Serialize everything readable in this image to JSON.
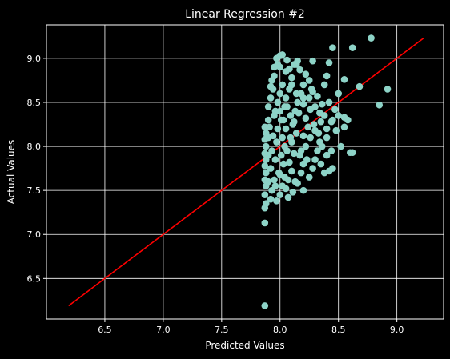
{
  "chart_data": {
    "type": "scatter",
    "title": "Linear Regression #2",
    "xlabel": "Predicted Values",
    "ylabel": "Actual Values",
    "xlim": [
      6.0,
      9.4
    ],
    "ylim": [
      6.04,
      9.38
    ],
    "xticks": [
      "6.5",
      "7.0",
      "7.5",
      "8.0",
      "8.5",
      "9.0"
    ],
    "yticks": [
      "6.5",
      "7.0",
      "7.5",
      "8.0",
      "8.5",
      "9.0"
    ],
    "grid": true,
    "colors": {
      "background": "#000000",
      "points": "#8dd3c7",
      "fit_line": "#ff0000",
      "grid": "#ffffff",
      "text": "#ffffff"
    },
    "fit_line": {
      "x": [
        6.19,
        9.23
      ],
      "y": [
        6.19,
        9.23
      ]
    },
    "points": [
      [
        7.87,
        6.19
      ],
      [
        7.87,
        7.13
      ],
      [
        7.87,
        7.3
      ],
      [
        7.88,
        7.35
      ],
      [
        7.87,
        7.45
      ],
      [
        7.88,
        7.55
      ],
      [
        7.87,
        7.62
      ],
      [
        7.88,
        7.7
      ],
      [
        7.87,
        7.78
      ],
      [
        7.88,
        7.85
      ],
      [
        7.87,
        7.92
      ],
      [
        7.88,
        8.0
      ],
      [
        7.87,
        8.08
      ],
      [
        7.88,
        8.15
      ],
      [
        7.87,
        8.22
      ],
      [
        7.9,
        8.3
      ],
      [
        7.9,
        8.45
      ],
      [
        7.92,
        8.55
      ],
      [
        7.92,
        8.68
      ],
      [
        7.93,
        8.75
      ],
      [
        7.95,
        8.8
      ],
      [
        7.98,
        8.93
      ],
      [
        7.97,
        9.0
      ],
      [
        8.02,
        9.04
      ],
      [
        7.92,
        7.4
      ],
      [
        7.93,
        7.5
      ],
      [
        7.95,
        7.62
      ],
      [
        7.92,
        7.75
      ],
      [
        7.96,
        7.85
      ],
      [
        7.93,
        7.95
      ],
      [
        7.97,
        8.05
      ],
      [
        7.94,
        8.12
      ],
      [
        7.98,
        8.2
      ],
      [
        7.95,
        8.35
      ],
      [
        8.0,
        8.4
      ],
      [
        7.98,
        8.5
      ],
      [
        8.0,
        8.6
      ],
      [
        8.02,
        8.7
      ],
      [
        8.0,
        7.45
      ],
      [
        8.02,
        7.55
      ],
      [
        8.0,
        7.68
      ],
      [
        8.03,
        7.8
      ],
      [
        8.01,
        7.9
      ],
      [
        8.04,
        8.0
      ],
      [
        8.02,
        8.1
      ],
      [
        8.05,
        8.2
      ],
      [
        8.03,
        8.3
      ],
      [
        8.06,
        8.45
      ],
      [
        8.05,
        8.55
      ],
      [
        8.08,
        8.65
      ],
      [
        8.1,
        8.78
      ],
      [
        8.08,
        8.88
      ],
      [
        8.12,
        8.93
      ],
      [
        8.15,
        8.97
      ],
      [
        8.05,
        7.52
      ],
      [
        8.07,
        7.62
      ],
      [
        8.1,
        7.72
      ],
      [
        8.08,
        7.82
      ],
      [
        8.12,
        7.92
      ],
      [
        8.1,
        8.05
      ],
      [
        8.14,
        8.15
      ],
      [
        8.12,
        8.28
      ],
      [
        8.16,
        8.38
      ],
      [
        8.15,
        8.5
      ],
      [
        8.18,
        8.6
      ],
      [
        8.2,
        8.48
      ],
      [
        8.15,
        7.58
      ],
      [
        8.18,
        7.7
      ],
      [
        8.2,
        7.8
      ],
      [
        8.17,
        7.9
      ],
      [
        8.22,
        8.0
      ],
      [
        8.2,
        8.12
      ],
      [
        8.24,
        8.22
      ],
      [
        8.22,
        8.32
      ],
      [
        8.26,
        8.42
      ],
      [
        8.25,
        8.55
      ],
      [
        8.28,
        8.62
      ],
      [
        8.3,
        8.45
      ],
      [
        8.2,
        7.5
      ],
      [
        8.25,
        7.65
      ],
      [
        8.28,
        7.75
      ],
      [
        8.3,
        7.85
      ],
      [
        8.32,
        7.95
      ],
      [
        8.34,
        8.05
      ],
      [
        8.3,
        8.18
      ],
      [
        8.35,
        8.28
      ],
      [
        8.38,
        8.35
      ],
      [
        8.4,
        8.2
      ],
      [
        8.36,
        8.0
      ],
      [
        8.4,
        7.9
      ],
      [
        8.38,
        7.7
      ],
      [
        8.42,
        7.72
      ],
      [
        8.45,
        7.75
      ],
      [
        8.42,
        8.5
      ],
      [
        8.45,
        8.3
      ],
      [
        8.48,
        8.18
      ],
      [
        8.4,
        8.8
      ],
      [
        8.42,
        8.95
      ],
      [
        8.38,
        8.7
      ],
      [
        8.45,
        9.12
      ],
      [
        8.52,
        8.0
      ],
      [
        8.5,
        8.35
      ],
      [
        8.55,
        8.22
      ],
      [
        8.55,
        8.76
      ],
      [
        8.58,
        8.3
      ],
      [
        8.6,
        7.93
      ],
      [
        8.62,
        7.93
      ],
      [
        8.62,
        9.12
      ],
      [
        8.68,
        8.68
      ],
      [
        8.78,
        9.23
      ],
      [
        8.85,
        8.47
      ],
      [
        8.92,
        8.65
      ],
      [
        8.55,
        8.33
      ],
      [
        8.5,
        8.6
      ],
      [
        8.0,
        9.03
      ],
      [
        8.06,
        8.98
      ],
      [
        8.14,
        8.93
      ],
      [
        8.17,
        8.87
      ],
      [
        8.28,
        8.97
      ],
      [
        8.22,
        8.82
      ],
      [
        8.1,
        8.7
      ],
      [
        8.27,
        8.65
      ],
      [
        8.32,
        8.57
      ],
      [
        8.36,
        8.48
      ],
      [
        8.34,
        8.38
      ],
      [
        7.9,
        7.6
      ],
      [
        7.9,
        7.9
      ],
      [
        7.9,
        8.1
      ],
      [
        7.91,
        8.22
      ],
      [
        7.96,
        7.55
      ],
      [
        7.99,
        7.7
      ],
      [
        8.04,
        7.65
      ],
      [
        8.06,
        7.95
      ],
      [
        8.09,
        8.1
      ],
      [
        8.11,
        8.25
      ],
      [
        8.13,
        8.4
      ],
      [
        8.14,
        8.6
      ],
      [
        8.2,
        8.7
      ],
      [
        8.25,
        8.75
      ],
      [
        8.04,
        8.45
      ],
      [
        7.94,
        8.65
      ],
      [
        7.96,
        8.4
      ],
      [
        8.01,
        8.3
      ],
      [
        8.09,
        8.35
      ],
      [
        8.26,
        8.1
      ],
      [
        8.29,
        8.25
      ],
      [
        8.33,
        8.15
      ],
      [
        8.35,
        7.8
      ],
      [
        8.4,
        8.1
      ],
      [
        8.44,
        8.28
      ],
      [
        8.47,
        8.42
      ],
      [
        8.44,
        7.95
      ],
      [
        8.18,
        7.95
      ],
      [
        8.23,
        7.85
      ],
      [
        8.13,
        7.6
      ],
      [
        8.11,
        7.48
      ],
      [
        8.07,
        7.42
      ],
      [
        7.97,
        7.38
      ],
      [
        8.0,
        8.9
      ],
      [
        8.05,
        8.85
      ],
      [
        7.95,
        8.9
      ],
      [
        8.2,
        8.55
      ]
    ]
  }
}
